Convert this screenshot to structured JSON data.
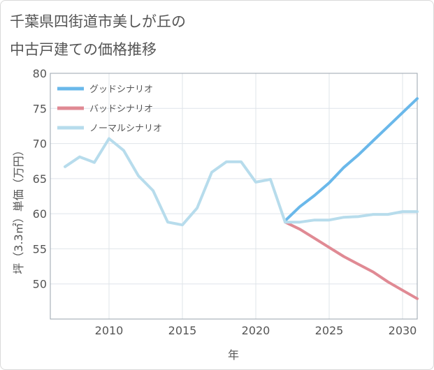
{
  "title_lines": [
    "千葉県四街道市美しが丘の",
    "中古戸建ての価格推移"
  ],
  "chart_data": {
    "type": "line",
    "title": "千葉県四街道市美しが丘の中古戸建ての価格推移",
    "xlabel": "年",
    "ylabel": "坪（3.3㎡）単価（万円）",
    "xlim": [
      2006,
      2031
    ],
    "ylim": [
      45,
      80
    ],
    "x_ticks": [
      2010,
      2015,
      2020,
      2025,
      2030
    ],
    "y_ticks": [
      50,
      55,
      60,
      65,
      70,
      75,
      80
    ],
    "grid": true,
    "legend_position": "top-left",
    "series": [
      {
        "name": "グッドシナリオ",
        "color": "#6ab8ea",
        "x": [
          2022,
          2023,
          2024,
          2025,
          2026,
          2027,
          2028,
          2029,
          2030,
          2031
        ],
        "values": [
          59.0,
          61.0,
          62.6,
          64.4,
          66.6,
          68.4,
          70.4,
          72.4,
          74.4,
          76.4
        ]
      },
      {
        "name": "バッドシナリオ",
        "color": "#e08a94",
        "x": [
          2022,
          2023,
          2024,
          2025,
          2026,
          2027,
          2028,
          2029,
          2030,
          2031
        ],
        "values": [
          58.8,
          57.8,
          56.5,
          55.2,
          53.9,
          52.8,
          51.7,
          50.3,
          49.1,
          47.9
        ]
      },
      {
        "name": "ノーマルシナリオ",
        "color": "#b7dcec",
        "x": [
          2007,
          2008,
          2009,
          2010,
          2011,
          2012,
          2013,
          2014,
          2015,
          2016,
          2017,
          2018,
          2019,
          2020,
          2021,
          2022,
          2023,
          2024,
          2025,
          2026,
          2027,
          2028,
          2029,
          2030,
          2031
        ],
        "values": [
          66.7,
          68.1,
          67.3,
          70.7,
          69.0,
          65.4,
          63.3,
          58.8,
          58.4,
          60.8,
          65.9,
          67.4,
          67.4,
          64.5,
          64.9,
          58.8,
          58.8,
          59.1,
          59.1,
          59.5,
          59.6,
          59.9,
          59.9,
          60.3,
          60.3
        ]
      }
    ]
  }
}
